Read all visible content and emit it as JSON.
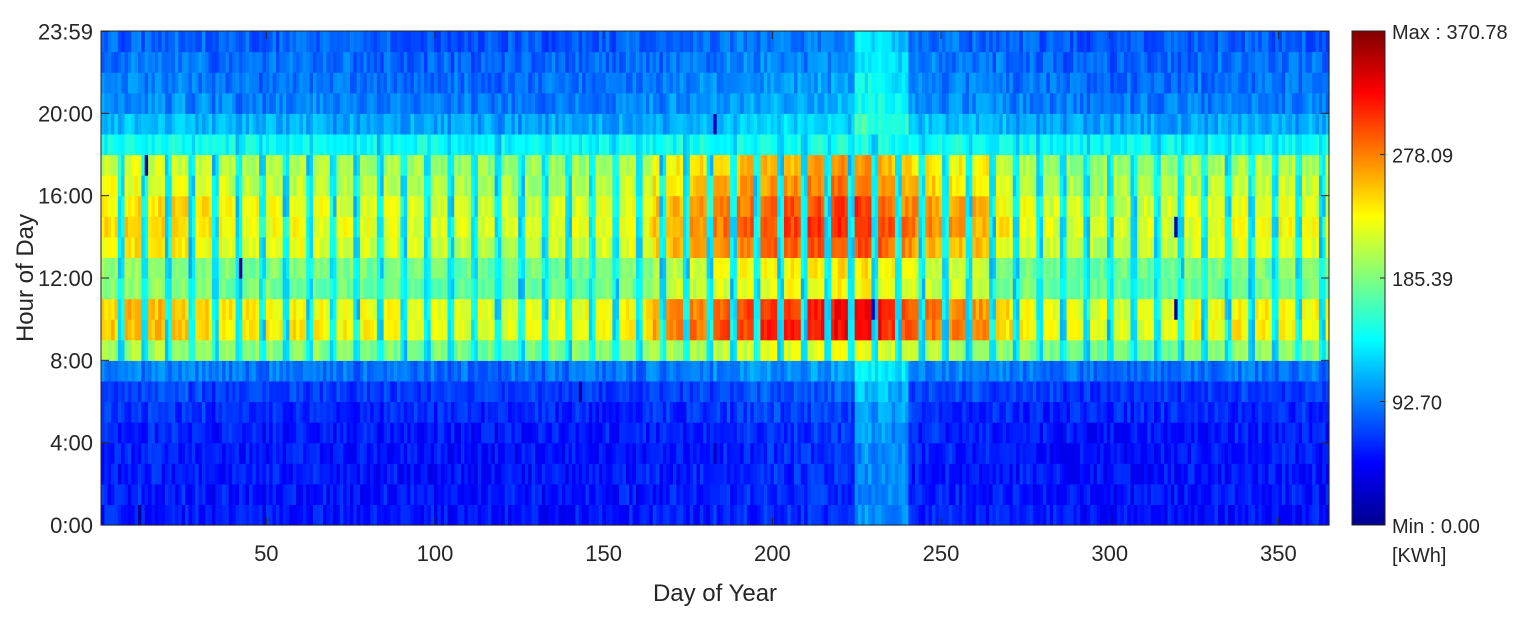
{
  "chart_data": {
    "type": "heatmap",
    "title": "",
    "xlabel": "Day of Year",
    "ylabel": "Hour of Day",
    "xlim": [
      1,
      365
    ],
    "ylim": [
      0,
      24
    ],
    "x_ticks": [
      {
        "value": 50,
        "label": "50"
      },
      {
        "value": 100,
        "label": "100"
      },
      {
        "value": 150,
        "label": "150"
      },
      {
        "value": 200,
        "label": "200"
      },
      {
        "value": 250,
        "label": "250"
      },
      {
        "value": 300,
        "label": "300"
      },
      {
        "value": 350,
        "label": "350"
      }
    ],
    "y_ticks": [
      {
        "value": 0,
        "label": "0:00"
      },
      {
        "value": 4,
        "label": "4:00"
      },
      {
        "value": 8,
        "label": "8:00"
      },
      {
        "value": 12,
        "label": "12:00"
      },
      {
        "value": 16,
        "label": "16:00"
      },
      {
        "value": 20,
        "label": "20:00"
      },
      {
        "value": 23.98,
        "label": "23:59"
      }
    ],
    "colorbar": {
      "colormap": "jet",
      "min": 0,
      "max": 370.78,
      "unit": "[KWh]",
      "tick_labels": [
        {
          "value": 370.78,
          "label": "Max : 370.78"
        },
        {
          "value": 278.09,
          "label": "278.09"
        },
        {
          "value": 185.39,
          "label": "185.39"
        },
        {
          "value": 92.7,
          "label": "92.70"
        },
        {
          "value": 0,
          "label": "Min : 0.00"
        }
      ]
    },
    "hourly_profile": {
      "hours": [
        0,
        1,
        2,
        3,
        4,
        5,
        6,
        7,
        8,
        9,
        10,
        11,
        12,
        13,
        14,
        15,
        16,
        17,
        18,
        19,
        20,
        21,
        22,
        23
      ],
      "values": [
        62,
        62,
        62,
        62,
        64,
        70,
        78,
        102,
        205,
        265,
        262,
        195,
        200,
        245,
        255,
        250,
        232,
        222,
        145,
        125,
        108,
        102,
        98,
        92
      ]
    },
    "day_level_profile": {
      "days": [
        1,
        10,
        20,
        30,
        36,
        40,
        60,
        80,
        100,
        120,
        140,
        160,
        175,
        190,
        200,
        210,
        220,
        230,
        240,
        250,
        265,
        280,
        300,
        320,
        340,
        355,
        365
      ],
      "levels": [
        0.88,
        0.95,
        0.95,
        0.92,
        0.85,
        0.8,
        0.8,
        0.75,
        0.72,
        0.68,
        0.72,
        0.8,
        0.95,
        1.1,
        1.18,
        1.22,
        1.3,
        1.3,
        1.05,
        0.95,
        0.9,
        0.72,
        0.68,
        0.7,
        0.8,
        0.8,
        0.75
      ]
    },
    "weekly_low_days_offset": [
      0,
      6
    ],
    "summer_peak_days": [
      165,
      265
    ],
    "anomaly_cells": [
      {
        "day": 14,
        "hour": 17,
        "value": 10
      },
      {
        "day": 42,
        "hour": 12,
        "value": 10
      },
      {
        "day": 42,
        "hour": 6,
        "value": 60
      },
      {
        "day": 143,
        "hour": 6,
        "value": 15
      },
      {
        "day": 183,
        "hour": 19,
        "value": 25
      },
      {
        "day": 183,
        "hour": 3,
        "value": 25
      },
      {
        "day": 230,
        "hour": 10,
        "value": 25
      },
      {
        "day": 320,
        "hour": 14,
        "value": 15
      },
      {
        "day": 320,
        "hour": 10,
        "value": 15
      },
      {
        "day": 12,
        "hour": 0,
        "value": 10
      }
    ]
  }
}
